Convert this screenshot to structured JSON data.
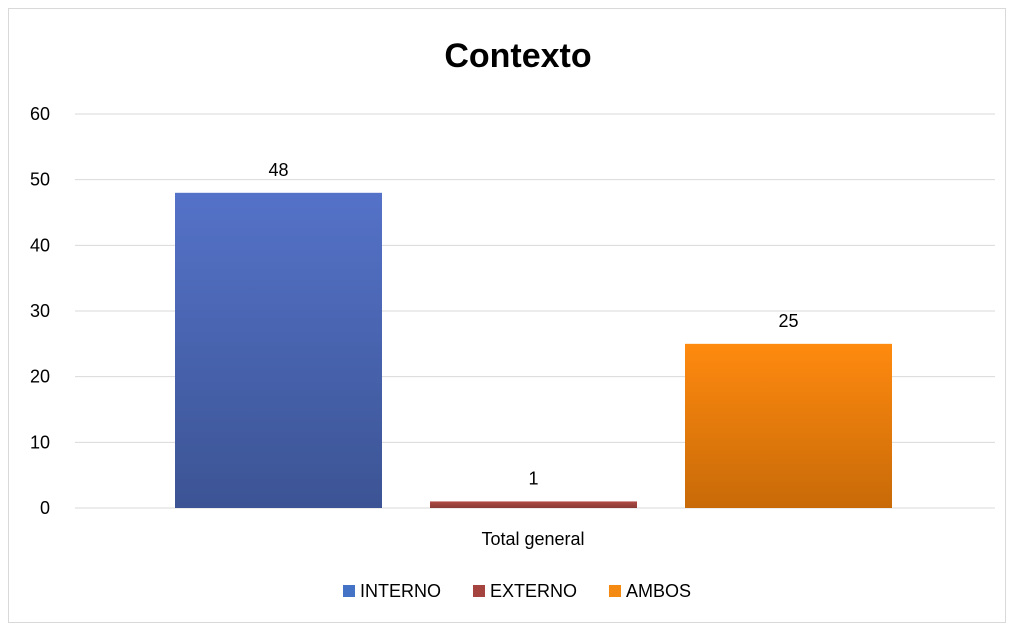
{
  "chart_data": {
    "type": "bar",
    "title": "Contexto",
    "categories": [
      "Total general"
    ],
    "series": [
      {
        "name": "INTERNO",
        "values": [
          48
        ],
        "color": "#4472c4"
      },
      {
        "name": "EXTERNO",
        "values": [
          1
        ],
        "color": "#a5433f"
      },
      {
        "name": "AMBOS",
        "values": [
          25
        ],
        "color": "#f58a12"
      }
    ],
    "ylim": [
      0,
      60
    ],
    "yticks": [
      0,
      10,
      20,
      30,
      40,
      50,
      60
    ],
    "grid": true,
    "legend_position": "bottom",
    "data_labels": true
  }
}
